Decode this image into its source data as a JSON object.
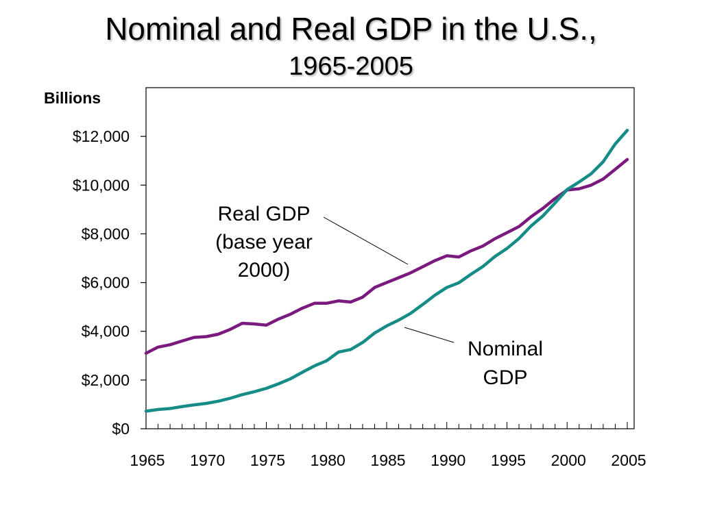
{
  "title_line1": "Nominal and Real GDP in the U.S.,",
  "title_line2": "1965-2005",
  "colors": {
    "real": "#7b1a7e",
    "nominal": "#168c86"
  },
  "chart_data": {
    "type": "line",
    "title": "Nominal and Real GDP in the U.S., 1965-2005",
    "ylabel": "Billions",
    "xlabel": "",
    "xlim": [
      1965,
      2005.5
    ],
    "ylim": [
      0,
      14000
    ],
    "grid": false,
    "legend": "none",
    "yticks": [
      0,
      2000,
      4000,
      6000,
      8000,
      10000,
      12000
    ],
    "ytick_labels": [
      "$0",
      "$2,000",
      "$4,000",
      "$6,000",
      "$8,000",
      "$10,000",
      "$12,000"
    ],
    "xticks": [
      1965,
      1970,
      1975,
      1980,
      1985,
      1990,
      1995,
      2000,
      2005
    ],
    "xtick_labels": [
      "1965",
      "1970",
      "1975",
      "1980",
      "1985",
      "1990",
      "1995",
      "2000",
      "2005"
    ],
    "annotations": [
      {
        "key": "real",
        "lines": [
          "Real GDP",
          "(base year",
          "2000)"
        ]
      },
      {
        "key": "nominal",
        "lines": [
          "Nominal",
          "GDP"
        ]
      }
    ],
    "series": [
      {
        "name": "Real GDP",
        "key": "real",
        "x": [
          1965,
          1966,
          1967,
          1968,
          1969,
          1970,
          1971,
          1972,
          1973,
          1974,
          1975,
          1976,
          1977,
          1978,
          1979,
          1980,
          1981,
          1982,
          1983,
          1984,
          1985,
          1986,
          1987,
          1988,
          1989,
          1990,
          1991,
          1992,
          1993,
          1994,
          1995,
          1996,
          1997,
          1998,
          1999,
          2000,
          2001,
          2002,
          2003,
          2004,
          2005
        ],
        "y": [
          3100,
          3350,
          3450,
          3600,
          3750,
          3780,
          3880,
          4080,
          4330,
          4300,
          4250,
          4500,
          4700,
          4950,
          5150,
          5150,
          5250,
          5200,
          5400,
          5800,
          6000,
          6200,
          6400,
          6650,
          6900,
          7100,
          7050,
          7300,
          7500,
          7800,
          8050,
          8300,
          8700,
          9050,
          9450,
          9800,
          9850,
          10000,
          10250,
          10650,
          11050
        ]
      },
      {
        "name": "Nominal GDP",
        "key": "nominal",
        "x": [
          1965,
          1966,
          1967,
          1968,
          1969,
          1970,
          1971,
          1972,
          1973,
          1974,
          1975,
          1976,
          1977,
          1978,
          1979,
          1980,
          1981,
          1982,
          1983,
          1984,
          1985,
          1986,
          1987,
          1988,
          1989,
          1990,
          1991,
          1992,
          1993,
          1994,
          1995,
          1996,
          1997,
          1998,
          1999,
          2000,
          2001,
          2002,
          2003,
          2004,
          2005
        ],
        "y": [
          720,
          790,
          830,
          910,
          980,
          1040,
          1130,
          1250,
          1400,
          1520,
          1660,
          1840,
          2050,
          2320,
          2580,
          2790,
          3150,
          3250,
          3540,
          3930,
          4220,
          4460,
          4740,
          5100,
          5480,
          5800,
          5990,
          6340,
          6660,
          7070,
          7400,
          7810,
          8320,
          8740,
          9270,
          9820,
          10130,
          10470,
          10960,
          11690,
          12250
        ]
      }
    ]
  }
}
